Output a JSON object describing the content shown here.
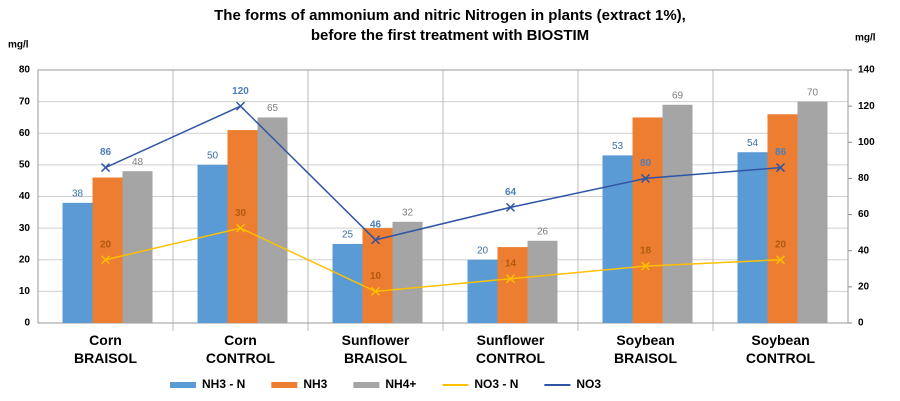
{
  "chart_data": {
    "type": "bar",
    "title": [
      "The forms of ammonium and nitric Nitrogen in plants (extract 1%),",
      "before the first treatment with BIOSTIM"
    ],
    "ylabel": "mg/l",
    "y2label": "mg/l",
    "categories": [
      "Corn BRAISOL",
      "Corn CONTROL",
      "Sunflower BRAISOL",
      "Sunflower CONTROL",
      "Soybean BRAISOL",
      "Soybean CONTROL"
    ],
    "series": [
      {
        "name": "NH3 - N",
        "type": "bar",
        "color": "#5b9bd5",
        "label_color": "#3d6fa8",
        "show_labels": true,
        "values": [
          38,
          50,
          25,
          20,
          53,
          54
        ]
      },
      {
        "name": "NH3",
        "type": "bar",
        "color": "#ed7d31",
        "show_labels": false,
        "values": [
          46,
          61,
          30,
          24,
          65,
          66
        ]
      },
      {
        "name": "NH4+",
        "type": "bar",
        "color": "#a5a5a5",
        "label_color": "#7f7f7f",
        "show_labels": true,
        "values": [
          48,
          65,
          32,
          26,
          69,
          70
        ]
      },
      {
        "name": "NO3 - N",
        "type": "line",
        "color": "#ffc000",
        "label_color": "#b05a10",
        "show_labels": true,
        "values": [
          20,
          30,
          10,
          14,
          18,
          20
        ]
      },
      {
        "name": "NO3",
        "type": "line",
        "axis": "y2",
        "color": "#2f55a4",
        "label_color": "#4a7ebb",
        "show_labels": true,
        "values": [
          86,
          120,
          46,
          64,
          80,
          86
        ]
      }
    ],
    "ylim": [
      0,
      80
    ],
    "yticks": [
      0,
      10,
      20,
      30,
      40,
      50,
      60,
      70,
      80
    ],
    "y2lim": [
      0,
      140
    ],
    "y2ticks": [
      0,
      20,
      40,
      60,
      80,
      100,
      120,
      140
    ],
    "grid": true,
    "legend": "bottom"
  }
}
